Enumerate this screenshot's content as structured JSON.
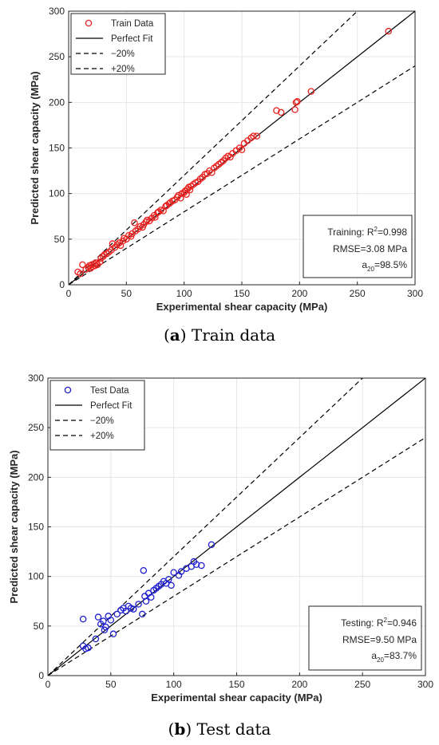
{
  "chart_data": [
    {
      "type": "scatter",
      "xlabel": "Experimental shear capacity (MPa)",
      "ylabel": "Predicted shear capacity (MPa)",
      "xlim": [
        0,
        300
      ],
      "ylim": [
        0,
        300
      ],
      "xticks": [
        0,
        50,
        100,
        150,
        200,
        250,
        300
      ],
      "yticks": [
        0,
        50,
        100,
        150,
        200,
        250,
        300
      ],
      "legend_position": "top-left",
      "legend": [
        "Train Data",
        "Perfect Fit",
        "−20%",
        "+20%"
      ],
      "marker_color": "#e8211f",
      "series": [
        {
          "name": "Train Data",
          "points": [
            [
              8,
              14
            ],
            [
              10,
              12
            ],
            [
              12,
              22
            ],
            [
              15,
              17
            ],
            [
              17,
              19
            ],
            [
              18,
              21
            ],
            [
              19,
              18
            ],
            [
              20,
              22
            ],
            [
              21,
              20
            ],
            [
              22,
              23
            ],
            [
              23,
              21
            ],
            [
              24,
              24
            ],
            [
              25,
              22
            ],
            [
              27,
              25
            ],
            [
              28,
              29
            ],
            [
              30,
              31
            ],
            [
              31,
              33
            ],
            [
              33,
              34
            ],
            [
              35,
              36
            ],
            [
              37,
              38
            ],
            [
              38,
              45
            ],
            [
              40,
              41
            ],
            [
              42,
              44
            ],
            [
              44,
              46
            ],
            [
              45,
              43
            ],
            [
              47,
              48
            ],
            [
              48,
              51
            ],
            [
              50,
              50
            ],
            [
              52,
              54
            ],
            [
              54,
              53
            ],
            [
              55,
              56
            ],
            [
              57,
              68
            ],
            [
              58,
              59
            ],
            [
              60,
              61
            ],
            [
              62,
              64
            ],
            [
              64,
              63
            ],
            [
              65,
              66
            ],
            [
              67,
              69
            ],
            [
              68,
              71
            ],
            [
              70,
              70
            ],
            [
              72,
              73
            ],
            [
              74,
              76
            ],
            [
              75,
              74
            ],
            [
              77,
              79
            ],
            [
              78,
              80
            ],
            [
              80,
              82
            ],
            [
              82,
              81
            ],
            [
              84,
              86
            ],
            [
              85,
              87
            ],
            [
              87,
              89
            ],
            [
              88,
              90
            ],
            [
              90,
              92
            ],
            [
              92,
              93
            ],
            [
              94,
              96
            ],
            [
              95,
              98
            ],
            [
              97,
              95
            ],
            [
              98,
              100
            ],
            [
              100,
              101
            ],
            [
              101,
              103
            ],
            [
              102,
              99
            ],
            [
              103,
              105
            ],
            [
              104,
              107
            ],
            [
              105,
              104
            ],
            [
              106,
              108
            ],
            [
              108,
              110
            ],
            [
              110,
              112
            ],
            [
              112,
              113
            ],
            [
              114,
              116
            ],
            [
              116,
              118
            ],
            [
              118,
              121
            ],
            [
              120,
              122
            ],
            [
              122,
              125
            ],
            [
              124,
              123
            ],
            [
              126,
              128
            ],
            [
              128,
              130
            ],
            [
              130,
              132
            ],
            [
              132,
              134
            ],
            [
              134,
              136
            ],
            [
              136,
              139
            ],
            [
              138,
              141
            ],
            [
              140,
              140
            ],
            [
              142,
              144
            ],
            [
              145,
              147
            ],
            [
              148,
              150
            ],
            [
              150,
              148
            ],
            [
              152,
              155
            ],
            [
              155,
              158
            ],
            [
              158,
              161
            ],
            [
              160,
              163
            ],
            [
              163,
              163
            ],
            [
              180,
              191
            ],
            [
              184,
              189
            ],
            [
              196,
              192
            ],
            [
              197,
              200
            ],
            [
              198,
              201
            ],
            [
              210,
              212
            ],
            [
              277,
              278
            ]
          ]
        }
      ],
      "annotation": {
        "prefix": "Training: R",
        "r2_value": "=0.998",
        "rmse": "RMSE=3.08 MPa",
        "a20_prefix": "a",
        "a20_sub": "20",
        "a20_value": "=98.5%"
      }
    },
    {
      "type": "scatter",
      "xlabel": "Experimental shear capacity (MPa)",
      "ylabel": "Predicted shear capacity (MPa)",
      "xlim": [
        0,
        300
      ],
      "ylim": [
        0,
        300
      ],
      "xticks": [
        0,
        50,
        100,
        150,
        200,
        250,
        300
      ],
      "yticks": [
        0,
        50,
        100,
        150,
        200,
        250,
        300
      ],
      "legend_position": "top-left",
      "legend": [
        "Test Data",
        "Perfect Fit",
        "−20%",
        "+20%"
      ],
      "marker_color": "#1f1fd0",
      "series": [
        {
          "name": "Test Data",
          "points": [
            [
              28,
              57
            ],
            [
              28,
              30
            ],
            [
              30,
              27
            ],
            [
              32,
              28
            ],
            [
              38,
              37
            ],
            [
              40,
              59
            ],
            [
              42,
              52
            ],
            [
              44,
              55
            ],
            [
              45,
              46
            ],
            [
              46,
              49
            ],
            [
              48,
              60
            ],
            [
              50,
              56
            ],
            [
              52,
              42
            ],
            [
              55,
              62
            ],
            [
              58,
              66
            ],
            [
              60,
              68
            ],
            [
              62,
              65
            ],
            [
              64,
              70
            ],
            [
              66,
              68
            ],
            [
              68,
              67
            ],
            [
              72,
              72
            ],
            [
              75,
              62
            ],
            [
              76,
              106
            ],
            [
              77,
              80
            ],
            [
              78,
              75
            ],
            [
              80,
              83
            ],
            [
              82,
              79
            ],
            [
              84,
              86
            ],
            [
              86,
              88
            ],
            [
              88,
              90
            ],
            [
              90,
              92
            ],
            [
              92,
              95
            ],
            [
              94,
              93
            ],
            [
              96,
              97
            ],
            [
              98,
              91
            ],
            [
              100,
              104
            ],
            [
              104,
              101
            ],
            [
              106,
              105
            ],
            [
              110,
              108
            ],
            [
              114,
              110
            ],
            [
              116,
              115
            ],
            [
              118,
              112
            ],
            [
              122,
              111
            ],
            [
              130,
              132
            ]
          ]
        }
      ],
      "annotation": {
        "prefix": "Testing: R",
        "r2_value": "=0.946",
        "rmse": "RMSE=9.50 MPa",
        "a20_prefix": "a",
        "a20_sub": "20",
        "a20_value": "=83.7%"
      }
    }
  ],
  "captions": [
    {
      "label": "(a)",
      "letter": "a",
      "text": " Train data"
    },
    {
      "label": "(b)",
      "letter": "b",
      "text": " Test data"
    }
  ]
}
